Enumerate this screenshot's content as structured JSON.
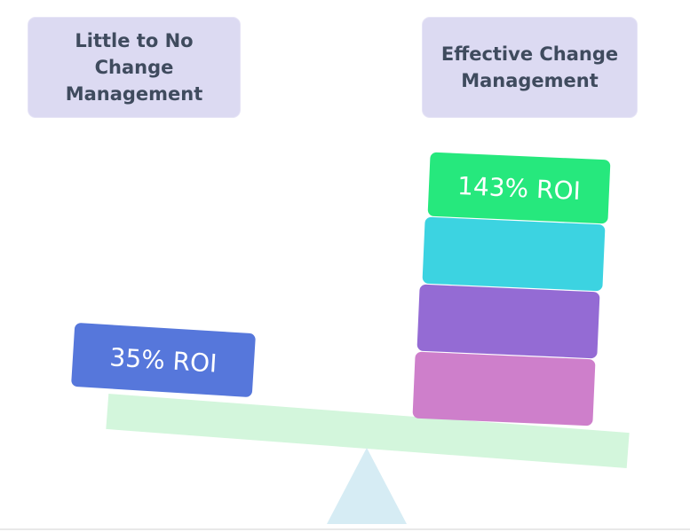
{
  "labels": {
    "left": "Little to No Change Management",
    "right": "Effective Change Management"
  },
  "blocks": {
    "left_roi": "35% ROI",
    "right_roi": "143% ROI"
  },
  "colors": {
    "label_bg": "#dcdaf2",
    "label_text": "#3f4b5e",
    "left_block": "#5677db",
    "green_block": "#26e87d",
    "cyan_block": "#3cd3e1",
    "purple_block": "#946bd4",
    "pink_block": "#ce7fcb",
    "beam": "#d3f6dc",
    "fulcrum": "#d6ecf4"
  }
}
